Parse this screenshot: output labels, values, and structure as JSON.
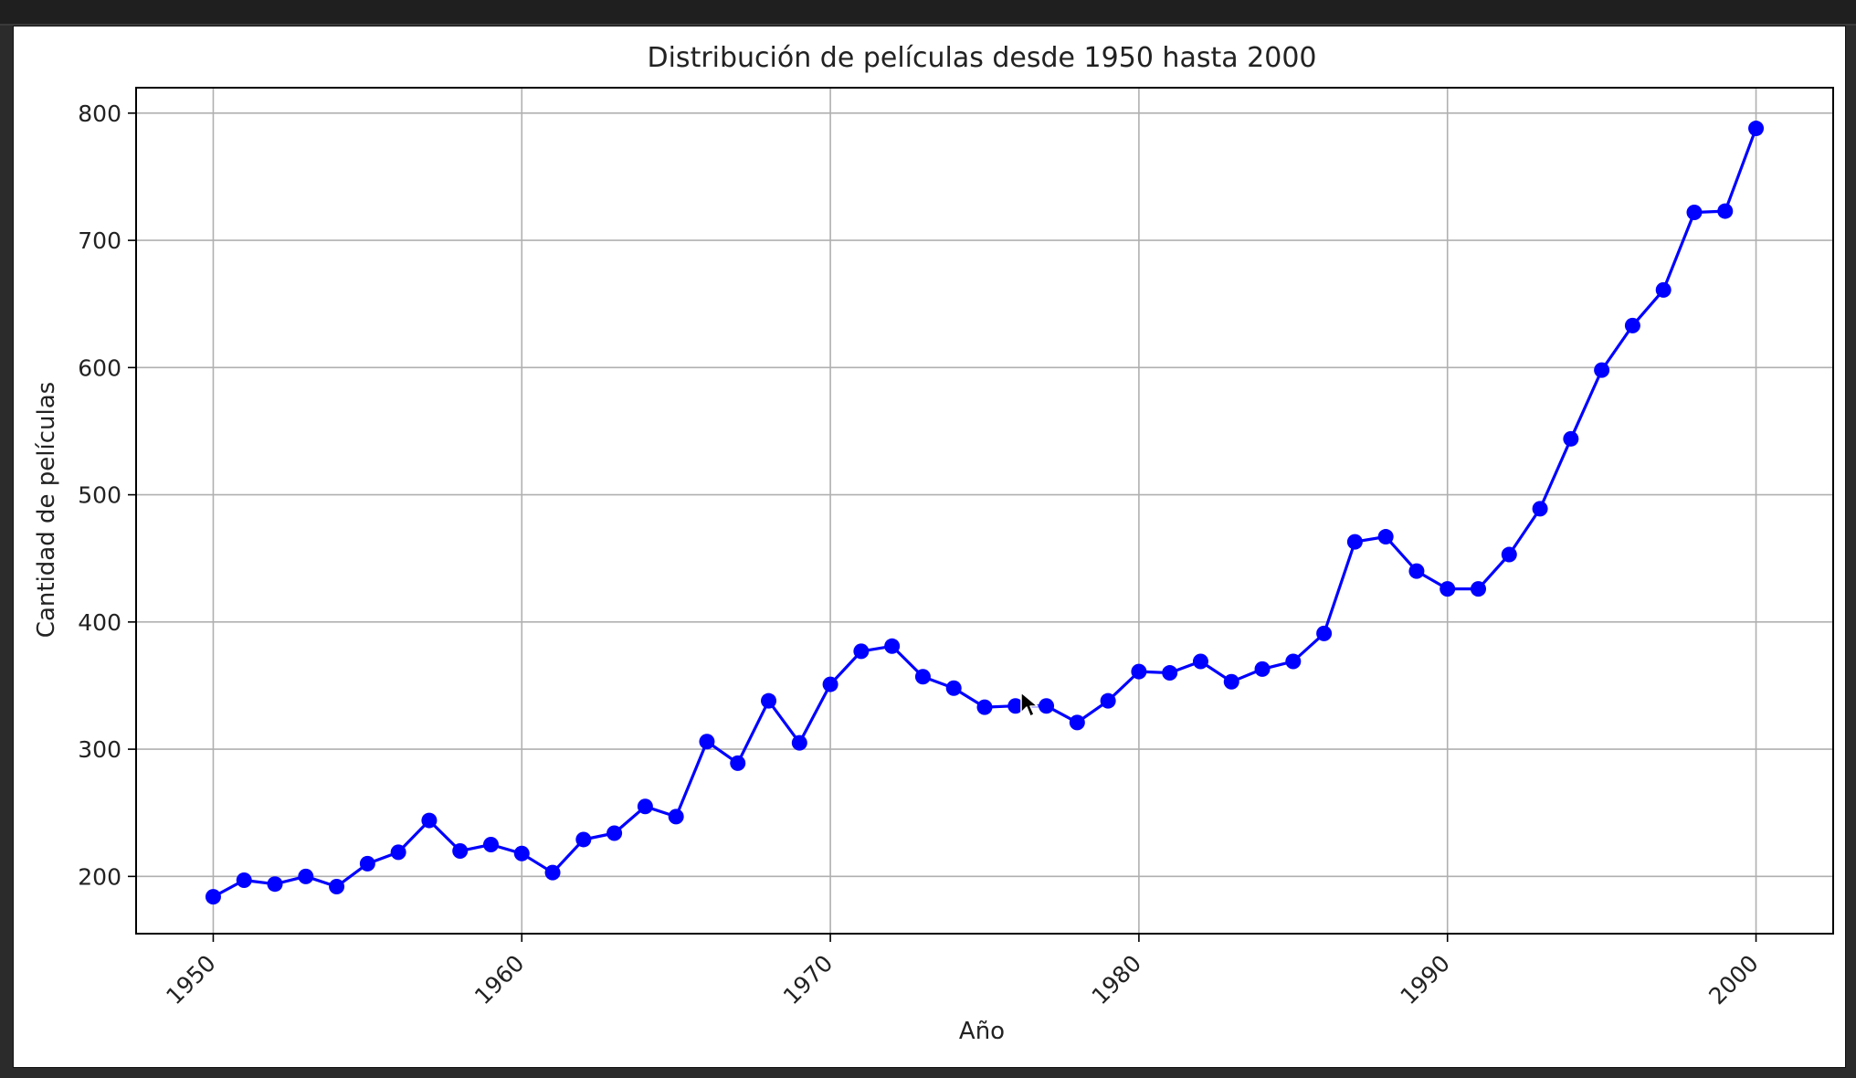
{
  "window": {
    "background_color": "#2b2b2b",
    "figure_color": "#ffffff"
  },
  "cursor_icon": "arrow-pointer-icon",
  "chart_data": {
    "type": "line",
    "title": "Distribución de películas desde 1950 hasta 2000",
    "xlabel": "Año",
    "ylabel": "Cantidad de películas",
    "xlim": [
      1947.5,
      2002.5
    ],
    "ylim": [
      155,
      820
    ],
    "xticks": [
      1950,
      1960,
      1970,
      1980,
      1990,
      2000
    ],
    "yticks": [
      200,
      300,
      400,
      500,
      600,
      700,
      800
    ],
    "xtick_rotation": 45,
    "grid": true,
    "marker": "circle",
    "series": [
      {
        "color": "#0000ff",
        "x": [
          1950,
          1951,
          1952,
          1953,
          1954,
          1955,
          1956,
          1957,
          1958,
          1959,
          1960,
          1961,
          1962,
          1963,
          1964,
          1965,
          1966,
          1967,
          1968,
          1969,
          1970,
          1971,
          1972,
          1973,
          1974,
          1975,
          1976,
          1977,
          1978,
          1979,
          1980,
          1981,
          1982,
          1983,
          1984,
          1985,
          1986,
          1987,
          1988,
          1989,
          1990,
          1991,
          1992,
          1993,
          1994,
          1995,
          1996,
          1997,
          1998,
          1999,
          2000
        ],
        "y": [
          184,
          197,
          194,
          200,
          192,
          210,
          219,
          244,
          220,
          225,
          218,
          203,
          229,
          234,
          255,
          247,
          306,
          289,
          338,
          305,
          351,
          377,
          381,
          357,
          348,
          333,
          334,
          334,
          321,
          338,
          361,
          360,
          369,
          353,
          363,
          369,
          391,
          463,
          467,
          440,
          426,
          426,
          453,
          489,
          544,
          598,
          633,
          661,
          722,
          723,
          788
        ]
      }
    ]
  }
}
